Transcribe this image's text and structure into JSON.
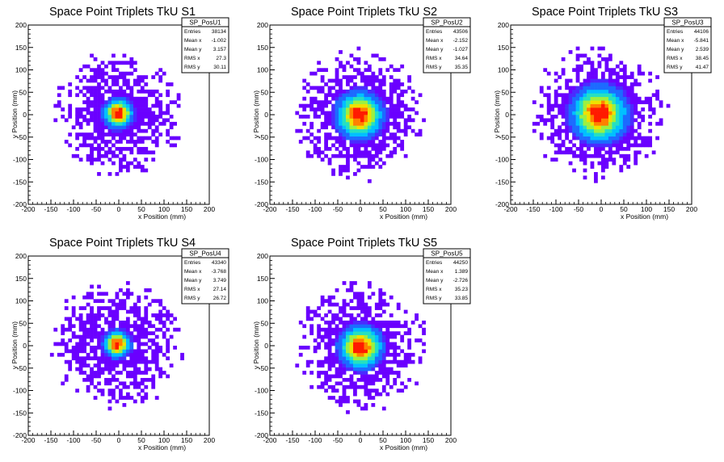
{
  "figure": {
    "colormap": [
      "#6a00ff",
      "#4a2bff",
      "#1c6bff",
      "#00c0ff",
      "#26e0c0",
      "#9cf040",
      "#f0e000",
      "#ff8000",
      "#ff1a00"
    ]
  },
  "chart_data": [
    {
      "type": "heatmap",
      "title": "Space Point Triplets TkU S1",
      "xlabel": "x Position (mm)",
      "ylabel": "y Position (mm)",
      "xlim": [
        -200,
        200
      ],
      "ylim": [
        -200,
        200
      ],
      "xticks": [
        -200,
        -150,
        -100,
        -50,
        0,
        50,
        100,
        150,
        200
      ],
      "yticks": [
        -200,
        -150,
        -100,
        -50,
        0,
        50,
        100,
        150,
        200
      ],
      "stats": {
        "name": "SP_PosU1",
        "entries": "38134",
        "mean_x": "-1.002",
        "mean_y": "3.157",
        "rms_x": "27.3",
        "rms_y": "30.11"
      },
      "shape": {
        "center": [
          -1,
          3
        ],
        "radius": 145,
        "core_sigma": 18,
        "peak_color": "#ff1a00"
      }
    },
    {
      "type": "heatmap",
      "title": "Space Point Triplets TkU S2",
      "xlabel": "x Position (mm)",
      "ylabel": "y Position (mm)",
      "xlim": [
        -200,
        200
      ],
      "ylim": [
        -200,
        200
      ],
      "xticks": [
        -200,
        -150,
        -100,
        -50,
        0,
        50,
        100,
        150,
        200
      ],
      "yticks": [
        -200,
        -150,
        -100,
        -50,
        0,
        50,
        100,
        150,
        200
      ],
      "stats": {
        "name": "SP_PosU2",
        "entries": "43506",
        "mean_x": "-2.152",
        "mean_y": "-1.027",
        "rms_x": "34.64",
        "rms_y": "35.35"
      },
      "shape": {
        "center": [
          -2,
          -1
        ],
        "radius": 150,
        "core_sigma": 28,
        "peak_color": "#ff1a00"
      }
    },
    {
      "type": "heatmap",
      "title": "Space Point Triplets TkU S3",
      "xlabel": "x Position (mm)",
      "ylabel": "y Position (mm)",
      "xlim": [
        -200,
        200
      ],
      "ylim": [
        -200,
        200
      ],
      "xticks": [
        -200,
        -150,
        -100,
        -50,
        0,
        50,
        100,
        150,
        200
      ],
      "yticks": [
        -200,
        -150,
        -100,
        -50,
        0,
        50,
        100,
        150,
        200
      ],
      "stats": {
        "name": "SP_PosU3",
        "entries": "44106",
        "mean_x": "-5.841",
        "mean_y": "2.539",
        "rms_x": "38.45",
        "rms_y": "41.47"
      },
      "shape": {
        "center": [
          -4,
          2
        ],
        "radius": 155,
        "core_sigma": 34,
        "peak_color": "#ff1a00"
      }
    },
    {
      "type": "heatmap",
      "title": "Space Point Triplets TkU S4",
      "xlabel": "x Position (mm)",
      "ylabel": "y Position (mm)",
      "xlim": [
        -200,
        200
      ],
      "ylim": [
        -200,
        200
      ],
      "xticks": [
        -200,
        -150,
        -100,
        -50,
        0,
        50,
        100,
        150,
        200
      ],
      "yticks": [
        -200,
        -150,
        -100,
        -50,
        0,
        50,
        100,
        150,
        200
      ],
      "stats": {
        "name": "SP_PosU4",
        "entries": "43340",
        "mean_x": "-3.768",
        "mean_y": "3.749",
        "rms_x": "27.14",
        "rms_y": "26.72"
      },
      "shape": {
        "center": [
          -4,
          4
        ],
        "radius": 150,
        "core_sigma": 16,
        "peak_color": "#ff1a00"
      }
    },
    {
      "type": "heatmap",
      "title": "Space Point Triplets TkU S5",
      "xlabel": "x Position (mm)",
      "ylabel": "y Position (mm)",
      "xlim": [
        -200,
        200
      ],
      "ylim": [
        -200,
        200
      ],
      "xticks": [
        -200,
        -150,
        -100,
        -50,
        0,
        50,
        100,
        150,
        200
      ],
      "yticks": [
        -200,
        -150,
        -100,
        -50,
        0,
        50,
        100,
        150,
        200
      ],
      "stats": {
        "name": "SP_PosU5",
        "entries": "44250",
        "mean_x": "1.389",
        "mean_y": "-2.726",
        "rms_x": "35.23",
        "rms_y": "33.85"
      },
      "shape": {
        "center": [
          1,
          -3
        ],
        "radius": 150,
        "core_sigma": 26,
        "peak_color": "#ff1a00"
      }
    }
  ]
}
